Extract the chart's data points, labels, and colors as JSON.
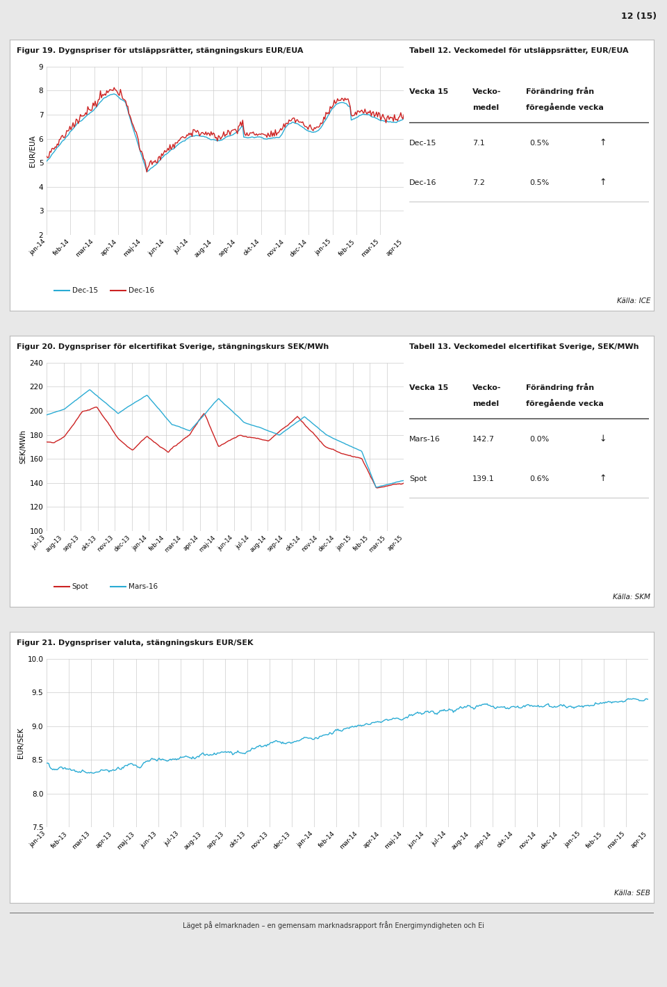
{
  "page_number": "12 (15)",
  "footer_text": "Läget på elmarknaden – en gemensam marknadsrapport från Energimyndigheten och Ei",
  "panel1": {
    "title": "Figur 19. Dygnspriser för utsläppsrätter, stängningskurs EUR/EUA",
    "ylabel": "EUR/EUA",
    "ylim": [
      2,
      9
    ],
    "yticks": [
      2,
      3,
      4,
      5,
      6,
      7,
      8,
      9
    ],
    "xticks": [
      "jan-14",
      "feb-14",
      "mar-14",
      "apr-14",
      "maj-14",
      "jun-14",
      "jul-14",
      "aug-14",
      "sep-14",
      "okt-14",
      "nov-14",
      "dec-14",
      "jan-15",
      "feb-15",
      "mar-15",
      "apr-15"
    ],
    "series": [
      {
        "label": "Dec-15",
        "color": "#29ABD4"
      },
      {
        "label": "Dec-16",
        "color": "#CC2222"
      }
    ],
    "table_title": "Tabell 12. Veckomedel för utsläppsrätter, EUR/EUA",
    "table_rows": [
      [
        "Dec-15",
        "7.1",
        "0.5%",
        "↑"
      ],
      [
        "Dec-16",
        "7.2",
        "0.5%",
        "↑"
      ]
    ],
    "source": "Källa: ICE"
  },
  "panel2": {
    "title": "Figur 20. Dygnspriser för elcertifikat Sverige, stängningskurs SEK/MWh",
    "ylabel": "SEK/MWh",
    "ylim": [
      100,
      240
    ],
    "yticks": [
      100,
      120,
      140,
      160,
      180,
      200,
      220,
      240
    ],
    "xticks": [
      "jul-13",
      "aug-13",
      "sep-13",
      "okt-13",
      "nov-13",
      "dec-13",
      "jan-14",
      "feb-14",
      "mar-14",
      "apr-14",
      "maj-14",
      "jun-14",
      "jul-14",
      "aug-14",
      "sep-14",
      "okt-14",
      "nov-14",
      "dec-14",
      "jan-15",
      "feb-15",
      "mar-15",
      "apr-15"
    ],
    "series": [
      {
        "label": "Spot",
        "color": "#CC2222"
      },
      {
        "label": "Mars-16",
        "color": "#29ABD4"
      }
    ],
    "table_title": "Tabell 13. Veckomedel elcertifikat Sverige, SEK/MWh",
    "table_rows": [
      [
        "Mars-16",
        "142.7",
        "0.0%",
        "↓"
      ],
      [
        "Spot",
        "139.1",
        "0.6%",
        "↑"
      ]
    ],
    "source": "Källa: SKM"
  },
  "panel3": {
    "title": "Figur 21. Dygnspriser valuta, stängningskurs EUR/SEK",
    "ylabel": "EUR/SEK",
    "ylim": [
      7.5,
      10.0
    ],
    "yticks": [
      7.5,
      8.0,
      8.5,
      9.0,
      9.5,
      10.0
    ],
    "xticks": [
      "jan-13",
      "feb-13",
      "mar-13",
      "apr-13",
      "maj-13",
      "jun-13",
      "jul-13",
      "aug-13",
      "sep-13",
      "okt-13",
      "nov-13",
      "dec-13",
      "jan-14",
      "feb-14",
      "mar-14",
      "apr-14",
      "maj-14",
      "jun-14",
      "jul-14",
      "aug-14",
      "sep-14",
      "okt-14",
      "nov-14",
      "dec-14",
      "jan-15",
      "feb-15",
      "mar-15",
      "apr-15"
    ],
    "series": [
      {
        "label": "EUR/SEK",
        "color": "#29ABD4"
      }
    ],
    "source": "Källa: SEB"
  },
  "bg_color": "#E8E8E8",
  "panel_bg": "#FFFFFF",
  "panel_border": "#BBBBBB",
  "grid_color": "#CCCCCC",
  "text_color": "#1A1A1A"
}
